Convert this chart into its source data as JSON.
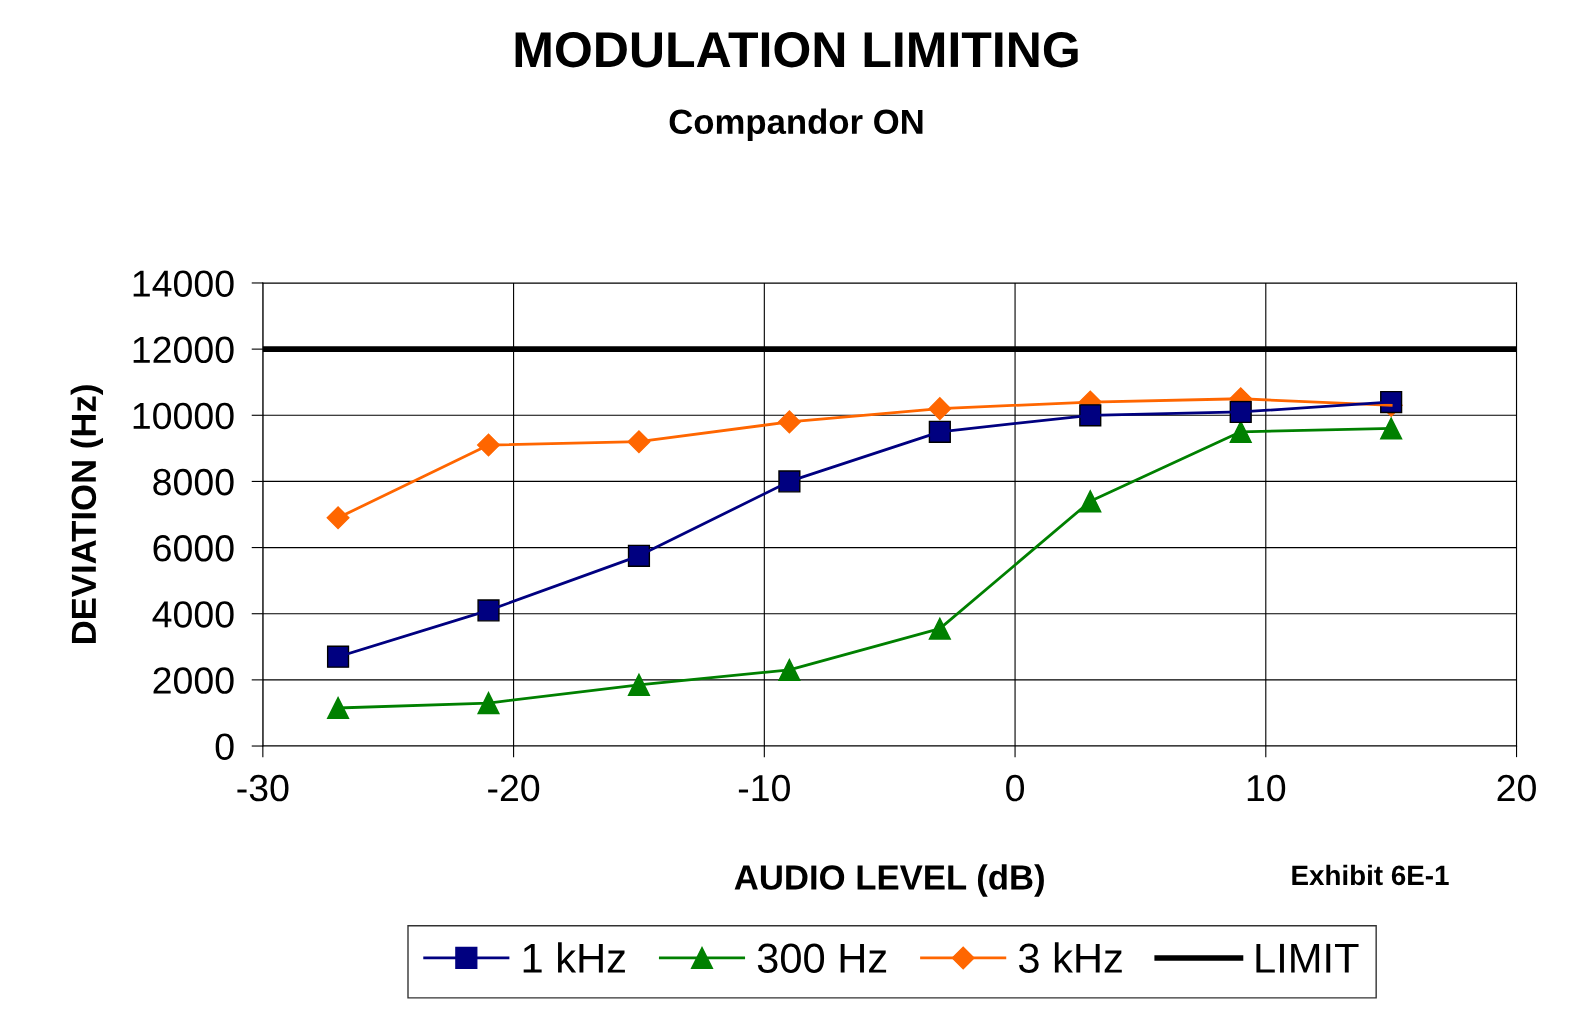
{
  "chart_data": {
    "type": "line",
    "title": "MODULATION LIMITING",
    "subtitle": "Compandor ON",
    "xlabel": "AUDIO LEVEL (dB)",
    "ylabel": "DEVIATION (Hz)",
    "x": [
      -27,
      -21,
      -15,
      -9,
      -3,
      3,
      9,
      15
    ],
    "series": [
      {
        "name": "1 kHz",
        "color": "#000080",
        "marker": "square",
        "values": [
          2700,
          4100,
          5750,
          8000,
          9500,
          10000,
          10100,
          10400
        ]
      },
      {
        "name": "300 Hz",
        "color": "#008000",
        "marker": "triangle",
        "values": [
          1150,
          1300,
          1850,
          2300,
          3550,
          7400,
          9500,
          9600
        ]
      },
      {
        "name": "3 kHz",
        "color": "#ff6600",
        "marker": "diamond",
        "values": [
          6900,
          9100,
          9200,
          9800,
          10200,
          10400,
          10500,
          10300
        ]
      }
    ],
    "ref_lines": [
      {
        "axis": "y",
        "value": 12000,
        "label": "LIMIT",
        "color": "#000000",
        "line_style": "solid"
      }
    ],
    "xlim": [
      -30,
      20
    ],
    "xticks": [
      -30,
      -20,
      -10,
      0,
      10,
      20
    ],
    "ylim": [
      0,
      14000
    ],
    "yticks": [
      0,
      2000,
      4000,
      6000,
      8000,
      10000,
      12000,
      14000
    ],
    "grid": true,
    "legend": "bottom",
    "line_style": "solid",
    "annotations": [
      "Exhibit 6E-1"
    ]
  }
}
